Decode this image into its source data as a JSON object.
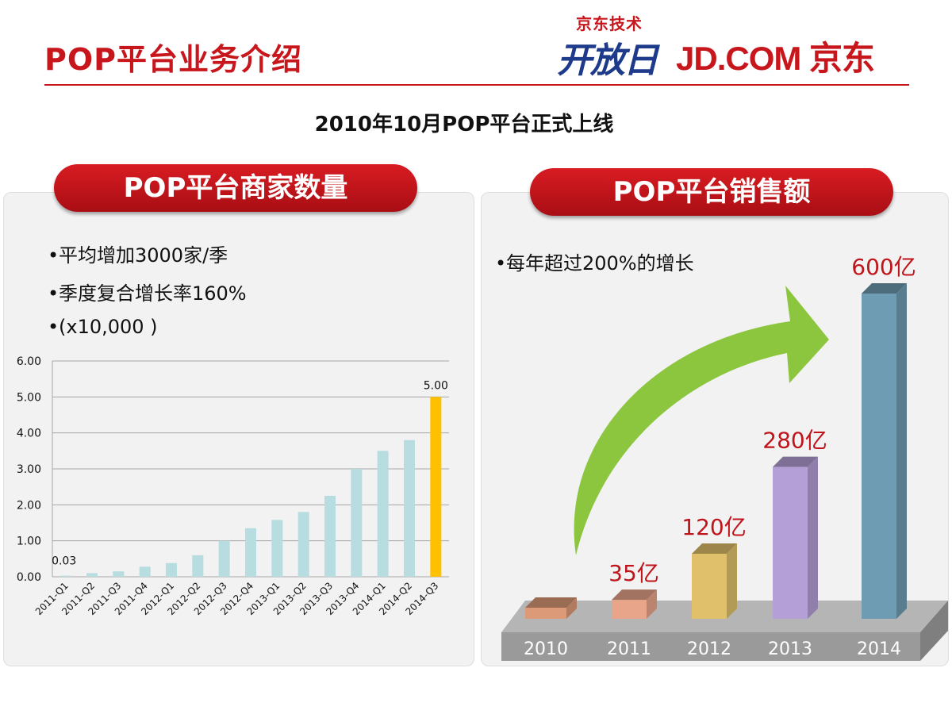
{
  "header": {
    "title": "POP平台业务介绍",
    "logo_tech_small": "京东技术",
    "logo_tech_big": "开放日",
    "logo_jd": "JD.COM 京东"
  },
  "subtitle": "2010年10月POP平台正式上线",
  "merchants": {
    "title": "POP平台商家数量",
    "bullets": [
      "平均增加3000家/季",
      "季度复合增长率160%",
      "(x10,000 )"
    ]
  },
  "sales": {
    "title": "POP平台销售额",
    "bullets": [
      "每年超过200%的增长"
    ]
  },
  "colors": {
    "brand_red": "#c8161d",
    "bar_normal": "#b7dde1",
    "bar_highlight": "#ffc000",
    "arrow_green": "#8cc63f"
  },
  "chart_data": [
    {
      "type": "bar",
      "categories": [
        "2011-Q1",
        "2011-Q2",
        "2011-Q3",
        "2011-Q4",
        "2012-Q1",
        "2012-Q2",
        "2012-Q3",
        "2012-Q4",
        "2013-Q1",
        "2013-Q2",
        "2013-Q3",
        "2013-Q4",
        "2014-Q1",
        "2014-Q2",
        "2014-Q3"
      ],
      "values": [
        0.03,
        0.1,
        0.15,
        0.28,
        0.38,
        0.6,
        1.0,
        1.35,
        1.58,
        1.8,
        2.25,
        3.0,
        3.5,
        3.8,
        5.0
      ],
      "yticks": [
        "0.00",
        "1.00",
        "2.00",
        "3.00",
        "4.00",
        "5.00",
        "6.00"
      ],
      "ylim": [
        0,
        6
      ],
      "data_labels": [
        {
          "index": 0,
          "text": "0.03"
        },
        {
          "index": 14,
          "text": "5.00"
        }
      ],
      "highlight_index": 14,
      "grid": true
    },
    {
      "type": "bar",
      "categories": [
        "2010",
        "2011",
        "2012",
        "2013",
        "2014"
      ],
      "values": [
        0,
        35,
        120,
        280,
        600
      ],
      "data_labels": [
        "",
        "35亿",
        "120亿",
        "280亿",
        "600亿"
      ],
      "bar_colors": [
        "#dd9a78",
        "#e8a58a",
        "#e0c06a",
        "#b49fd6",
        "#6e9cb3"
      ]
    }
  ]
}
